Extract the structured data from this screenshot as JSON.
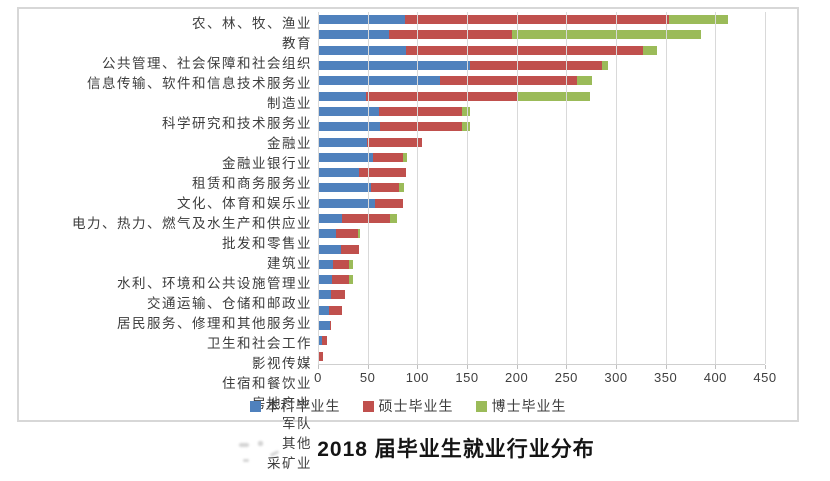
{
  "caption": "2018 届毕业生就业行业分布",
  "colors": {
    "undergrad_blue": "#4F81BD",
    "master_red": "#C0504D",
    "phd_green": "#9BBB59",
    "gridline": "#d9d9d9",
    "text": "#3d3d3d"
  },
  "chart_data": {
    "type": "bar",
    "orientation": "horizontal",
    "stacked": true,
    "title": "2018 届毕业生就业行业分布",
    "xlabel": "",
    "ylabel": "",
    "xlim": [
      0,
      450
    ],
    "x_ticks": [
      0,
      50,
      100,
      150,
      200,
      250,
      300,
      350,
      400,
      450
    ],
    "grid": true,
    "legend_position": "bottom",
    "categories": [
      "农、林、牧、渔业",
      "教育",
      "公共管理、社会保障和社会组织",
      "信息传输、软件和信息技术服务业",
      "制造业",
      "科学研究和技术服务业",
      "金融业",
      "金融业银行业",
      "租赁和商务服务业",
      "文化、体育和娱乐业",
      "电力、热力、燃气及水生产和供应业",
      "批发和零售业",
      "建筑业",
      "水利、环境和公共设施管理业",
      "交通运输、仓储和邮政业",
      "居民服务、修理和其他服务业",
      "卫生和社会工作",
      "影视传媒",
      "住宿和餐饮业",
      "房地产业",
      "军队",
      "其他",
      "采矿业"
    ],
    "series": [
      {
        "name": "本科毕业生",
        "color": "#4F81BD",
        "values": [
          88,
          71,
          89,
          153,
          123,
          48,
          61,
          62,
          49,
          55,
          41,
          53,
          57,
          24,
          18,
          23,
          15,
          14,
          13,
          11,
          12,
          4,
          1
        ]
      },
      {
        "name": "硕士毕业生",
        "color": "#C0504D",
        "values": [
          265,
          124,
          238,
          133,
          138,
          152,
          84,
          83,
          56,
          31,
          48,
          29,
          29,
          48,
          22,
          18,
          16,
          17,
          14,
          13,
          1,
          5,
          4
        ]
      },
      {
        "name": "博士毕业生",
        "color": "#9BBB59",
        "values": [
          60,
          191,
          14,
          6,
          15,
          74,
          8,
          8,
          0,
          4,
          0,
          5,
          0,
          8,
          2,
          0,
          4,
          4,
          0,
          0,
          0,
          0,
          0
        ]
      }
    ]
  }
}
